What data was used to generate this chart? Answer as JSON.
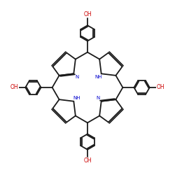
{
  "bg_color": "#ffffff",
  "bond_color": "#1a1a1a",
  "N_color": "#0000cd",
  "O_color": "#cc0000",
  "linewidth": 1.3,
  "figsize": [
    2.5,
    2.5
  ],
  "dpi": 100,
  "xlim": [
    -5.5,
    5.5
  ],
  "ylim": [
    -5.8,
    5.8
  ]
}
